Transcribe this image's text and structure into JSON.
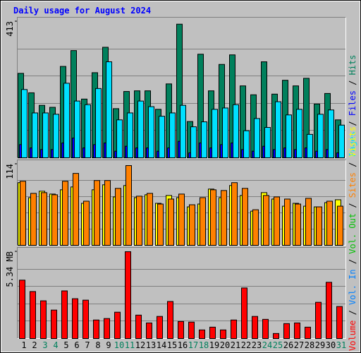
{
  "legend_separator": "/",
  "chart_data": [
    {
      "type": "bar",
      "title": "Daily usage for August 2024",
      "ylim": [
        0,
        413
      ],
      "yticks": [
        413
      ],
      "series": [
        {
          "name": "Hits",
          "color": "#00805c",
          "values": [
            256,
            197,
            159,
            153,
            277,
            325,
            178,
            258,
            335,
            149,
            201,
            203,
            203,
            147,
            224,
            405,
            110,
            314,
            203,
            283,
            312,
            218,
            191,
            291,
            193,
            235,
            218,
            241,
            163,
            195,
            115
          ]
        },
        {
          "name": "Files",
          "color": "#0000ff",
          "values": [
            40,
            30,
            25,
            25,
            45,
            60,
            30,
            40,
            45,
            20,
            35,
            30,
            30,
            20,
            30,
            50,
            15,
            45,
            30,
            40,
            45,
            25,
            20,
            35,
            25,
            30,
            25,
            30,
            20,
            25,
            15
          ]
        },
        {
          "name": "Pages",
          "color": "#00e0ff",
          "values": [
            207,
            136,
            136,
            132,
            226,
            172,
            161,
            210,
            291,
            115,
            136,
            172,
            155,
            126,
            136,
            159,
            94,
            109,
            147,
            151,
            161,
            82,
            119,
            92,
            170,
            130,
            147,
            71,
            132,
            145,
            99
          ]
        }
      ]
    },
    {
      "type": "bar",
      "ylim": [
        0,
        114
      ],
      "yticks": [
        114
      ],
      "series": [
        {
          "name": "Visits",
          "color": "#ffff00",
          "values": [
            88,
            67,
            76,
            72,
            78,
            82,
            59,
            78,
            85,
            68,
            84,
            67,
            71,
            59,
            70,
            67,
            54,
            58,
            79,
            67,
            84,
            70,
            48,
            74,
            65,
            55,
            59,
            55,
            54,
            60,
            64
          ]
        },
        {
          "name": "Sites",
          "color": "#ff8000",
          "values": [
            90,
            73,
            74,
            71,
            90,
            101,
            62,
            91,
            91,
            80,
            112,
            69,
            73,
            58,
            65,
            72,
            57,
            67,
            78,
            77,
            88,
            80,
            50,
            70,
            68,
            65,
            58,
            66,
            54,
            62,
            55
          ]
        }
      ]
    },
    {
      "type": "bar",
      "ylim": [
        0,
        5.34
      ],
      "yticks": [
        {
          "value": 5.34,
          "label": "5.34 MB"
        }
      ],
      "categories": [
        "1",
        "2",
        "3",
        "4",
        "5",
        "6",
        "7",
        "8",
        "9",
        "10",
        "11",
        "12",
        "13",
        "14",
        "15",
        "16",
        "17",
        "18",
        "19",
        "20",
        "21",
        "22",
        "23",
        "24",
        "25",
        "26",
        "27",
        "28",
        "29",
        "30",
        "31"
      ],
      "weekend_days": [
        "3",
        "4",
        "10",
        "11",
        "17",
        "18",
        "24",
        "25",
        "31"
      ],
      "weekend_color": "#00805c",
      "weekday_color": "#000000",
      "series": [
        {
          "name": "Volume",
          "color": "#ff0000",
          "values": [
            3.59,
            2.89,
            2.32,
            1.75,
            2.93,
            2.45,
            2.36,
            1.14,
            1.23,
            1.62,
            5.34,
            1.44,
            0.96,
            1.36,
            2.28,
            1.05,
            1.01,
            0.53,
            0.7,
            0.53,
            1.14,
            3.11,
            1.36,
            1.18,
            0.31,
            0.92,
            0.96,
            0.7,
            2.23,
            3.46,
            1.97
          ]
        },
        {
          "name": "Vol. In",
          "color": "#0080ff"
        },
        {
          "name": "Vol. Out",
          "color": "#00c000"
        }
      ]
    }
  ]
}
